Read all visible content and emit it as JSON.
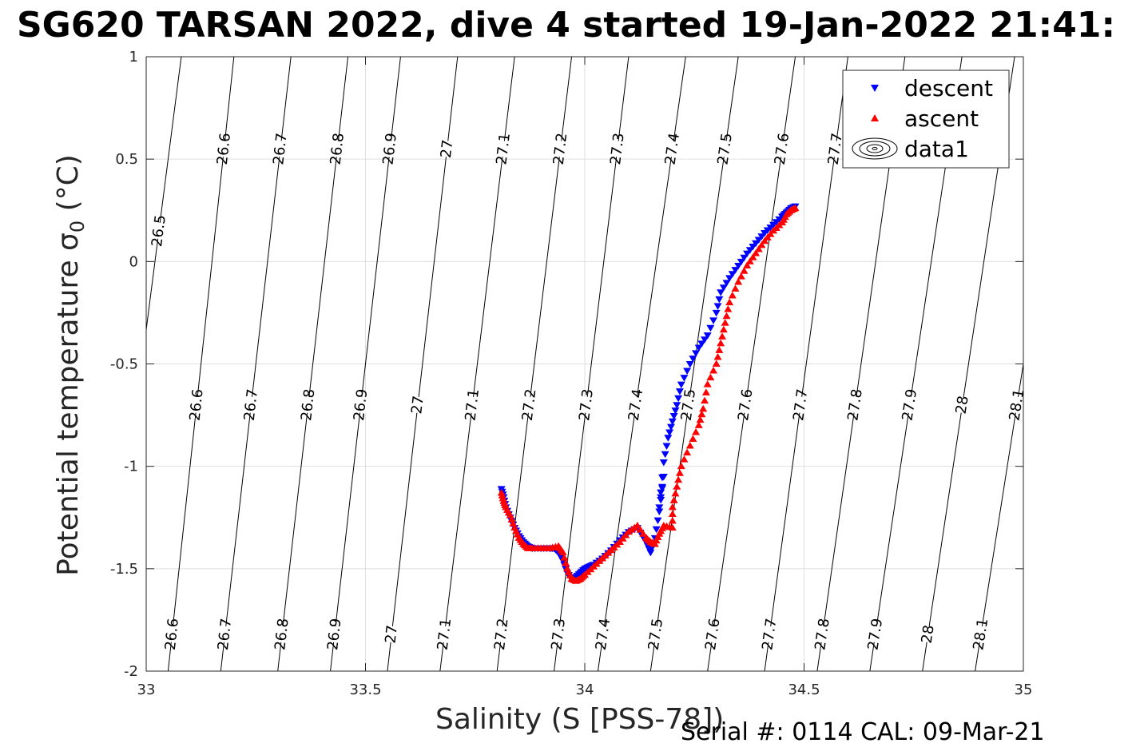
{
  "chart_data": {
    "type": "scatter",
    "title": "SG620 TARSAN 2022, dive 4 started 19-Jan-2022 21:41:",
    "xlabel": "Salinity (S [PSS-78])",
    "ylabel_prefix": "Potential temperature ",
    "ylabel_sigma": "σ",
    "ylabel_sub": "0",
    "ylabel_suffix": " (°C)",
    "xlim": [
      33,
      35
    ],
    "ylim": [
      -2,
      1
    ],
    "x_ticks": [
      "33",
      "33.5",
      "34",
      "34.5",
      "35"
    ],
    "y_ticks": [
      "-2",
      "-1.5",
      "-1",
      "-0.5",
      "0",
      "0.5",
      "1"
    ],
    "grid": true,
    "legend_position": "top-right",
    "legend": [
      {
        "label": "descent",
        "color": "#0000ff",
        "marker": "triangle-down"
      },
      {
        "label": "ascent",
        "color": "#ff0000",
        "marker": "triangle-up"
      },
      {
        "label": "data1",
        "color": "#000000",
        "marker": "contour"
      }
    ],
    "density_contours": {
      "levels": [
        "26.5",
        "26.6",
        "26.7",
        "26.8",
        "26.9",
        "27",
        "27.1",
        "27.2",
        "27.3",
        "27.4",
        "27.5",
        "27.6",
        "27.7",
        "27.8",
        "27.9",
        "28",
        "28.1"
      ],
      "x_at_bottom": [
        32.9,
        33.05,
        33.17,
        33.3,
        33.42,
        33.55,
        33.67,
        33.8,
        33.93,
        34.03,
        34.15,
        34.28,
        34.41,
        34.53,
        34.65,
        34.77,
        34.89
      ],
      "x_at_top": [
        33.08,
        33.2,
        33.33,
        33.46,
        33.58,
        33.71,
        33.84,
        33.97,
        34.1,
        34.23,
        34.35,
        34.48,
        34.6,
        34.73,
        34.86,
        34.98,
        35.11
      ]
    },
    "series": [
      {
        "name": "descent",
        "color": "#0000ff",
        "marker": "triangle-down",
        "x": [
          33.81,
          33.815,
          33.82,
          33.83,
          33.84,
          33.85,
          33.86,
          33.87,
          33.88,
          33.9,
          33.92,
          33.93,
          33.94,
          33.95,
          33.96,
          33.97,
          33.98,
          33.99,
          34.0,
          34.01,
          34.02,
          34.04,
          34.06,
          34.08,
          34.1,
          34.12,
          34.14,
          34.15,
          34.16,
          34.17,
          34.18,
          34.17,
          34.18,
          34.19,
          34.2,
          34.21,
          34.22,
          34.24,
          34.26,
          34.28,
          34.3,
          34.31,
          34.33,
          34.35,
          34.37,
          34.39,
          34.41,
          34.43,
          34.45,
          34.46,
          34.47,
          34.48
        ],
        "y": [
          -1.11,
          -1.15,
          -1.2,
          -1.25,
          -1.3,
          -1.34,
          -1.37,
          -1.39,
          -1.4,
          -1.4,
          -1.4,
          -1.4,
          -1.42,
          -1.46,
          -1.52,
          -1.55,
          -1.54,
          -1.52,
          -1.5,
          -1.49,
          -1.48,
          -1.45,
          -1.41,
          -1.36,
          -1.32,
          -1.3,
          -1.37,
          -1.42,
          -1.35,
          -1.22,
          -1.05,
          -1.2,
          -0.98,
          -0.86,
          -0.78,
          -0.7,
          -0.6,
          -0.5,
          -0.42,
          -0.36,
          -0.25,
          -0.15,
          -0.08,
          -0.02,
          0.04,
          0.09,
          0.14,
          0.18,
          0.22,
          0.24,
          0.26,
          0.27
        ]
      },
      {
        "name": "ascent",
        "color": "#ff0000",
        "marker": "triangle-up",
        "x": [
          33.81,
          33.815,
          33.82,
          33.83,
          33.84,
          33.85,
          33.86,
          33.87,
          33.88,
          33.9,
          33.92,
          33.94,
          33.95,
          33.96,
          33.97,
          33.98,
          33.99,
          34.0,
          34.02,
          34.04,
          34.06,
          34.08,
          34.1,
          34.12,
          34.14,
          34.15,
          34.16,
          34.17,
          34.18,
          34.2,
          34.2,
          34.21,
          34.22,
          34.24,
          34.26,
          34.27,
          34.28,
          34.3,
          34.31,
          34.32,
          34.33,
          34.35,
          34.37,
          34.39,
          34.41,
          34.43,
          34.45,
          34.46,
          34.47,
          34.48
        ],
        "y": [
          -1.13,
          -1.17,
          -1.2,
          -1.24,
          -1.3,
          -1.35,
          -1.38,
          -1.4,
          -1.4,
          -1.4,
          -1.4,
          -1.39,
          -1.42,
          -1.5,
          -1.55,
          -1.56,
          -1.55,
          -1.53,
          -1.49,
          -1.45,
          -1.41,
          -1.37,
          -1.32,
          -1.29,
          -1.35,
          -1.37,
          -1.38,
          -1.33,
          -1.29,
          -1.3,
          -1.2,
          -1.1,
          -1.0,
          -0.9,
          -0.8,
          -0.72,
          -0.6,
          -0.5,
          -0.4,
          -0.3,
          -0.2,
          -0.1,
          -0.02,
          0.04,
          0.1,
          0.15,
          0.19,
          0.23,
          0.25,
          0.26
        ]
      }
    ]
  },
  "footer": {
    "serial": "Serial #: 0114  CAL: 09-Mar-21"
  }
}
